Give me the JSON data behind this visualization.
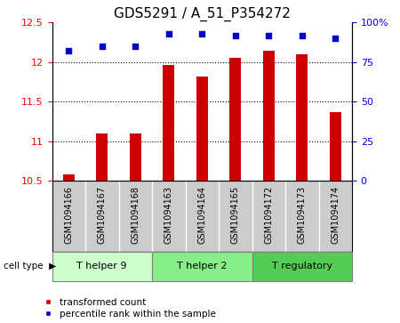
{
  "title": "GDS5291 / A_51_P354272",
  "samples": [
    "GSM1094166",
    "GSM1094167",
    "GSM1094168",
    "GSM1094163",
    "GSM1094164",
    "GSM1094165",
    "GSM1094172",
    "GSM1094173",
    "GSM1094174"
  ],
  "bar_values": [
    10.58,
    11.1,
    11.1,
    11.96,
    11.82,
    12.05,
    12.15,
    12.1,
    11.37
  ],
  "percentile_values": [
    82,
    85,
    85,
    93,
    93,
    92,
    92,
    92,
    90
  ],
  "ylim_left": [
    10.5,
    12.5
  ],
  "ylim_right": [
    0,
    100
  ],
  "yticks_left": [
    10.5,
    11.0,
    11.5,
    12.0,
    12.5
  ],
  "yticks_right": [
    0,
    25,
    50,
    75,
    100
  ],
  "ytick_right_labels": [
    "0",
    "25",
    "50",
    "75",
    "100%"
  ],
  "bar_color": "#cc0000",
  "dot_color": "#0000cc",
  "bar_bottom": 10.5,
  "cell_groups": [
    {
      "label": "T helper 9",
      "indices": [
        0,
        1,
        2
      ],
      "color": "#ccffcc"
    },
    {
      "label": "T helper 2",
      "indices": [
        3,
        4,
        5
      ],
      "color": "#88ee88"
    },
    {
      "label": "T regulatory",
      "indices": [
        6,
        7,
        8
      ],
      "color": "#55cc55"
    }
  ],
  "cell_type_label": "cell type",
  "legend_bar_label": "transformed count",
  "legend_dot_label": "percentile rank within the sample",
  "title_fontsize": 11,
  "tick_fontsize": 8,
  "label_fontsize": 8,
  "sample_fontsize": 7,
  "bg_color": "#cccccc",
  "plot_bg": "#ffffff",
  "bar_width": 0.35
}
